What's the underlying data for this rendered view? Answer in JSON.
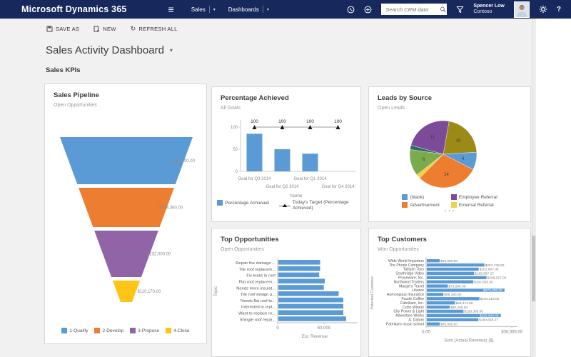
{
  "icons": {
    "hamburger": "≡",
    "caret-down": "▾",
    "refresh": "↻",
    "help": "?"
  },
  "topbar": {
    "brand": "Microsoft Dynamics 365",
    "nav": [
      {
        "label": "Sales"
      },
      {
        "label": "Dashboards"
      }
    ],
    "search_placeholder": "Search CRM data",
    "user_name": "Spencer Low",
    "user_org": "Contoso",
    "bg_color": "#17295c"
  },
  "command_bar": {
    "items": [
      {
        "label": "SAVE AS"
      },
      {
        "label": "NEW"
      },
      {
        "label": "REFRESH ALL"
      }
    ]
  },
  "page": {
    "title": "Sales Activity Dashboard",
    "section": "Sales KPIs"
  },
  "chart_data": [
    {
      "id": "sales_pipeline",
      "type": "funnel",
      "title": "Sales Pipeline",
      "subtitle": "Open Opportunities",
      "stages": [
        {
          "name": "1-Qualify",
          "label": "$215,000.00",
          "value": 215000,
          "color": "#5b9bd5"
        },
        {
          "name": "2-Develop",
          "label": "$218,360.00",
          "value": 218360,
          "color": "#ed7d31"
        },
        {
          "name": "3-Propose",
          "label": "$232,000.00",
          "value": 232000,
          "color": "#9064a7"
        },
        {
          "name": "4-Close",
          "label": "$110,170.00",
          "value": 110170,
          "color": "#ffc516"
        }
      ]
    },
    {
      "id": "percentage_achieved",
      "type": "bar",
      "title": "Percentage Achieved",
      "subtitle": "All Goals",
      "categories": [
        "Goal for Q3 2014",
        "Goal for Q2 2014",
        "Goal for Q1 2014",
        "Goal for Q4 2014"
      ],
      "values": [
        85,
        50,
        40,
        0
      ],
      "target_values": [
        100,
        100,
        100,
        100
      ],
      "target_labels": [
        "100",
        "100",
        "100",
        "100"
      ],
      "ylim": [
        0,
        100
      ],
      "yticks": [
        0,
        50,
        100
      ],
      "xlabel": "Name",
      "legend": [
        "Percentage Achieved",
        "Today's Target (Percentage Achieved)"
      ],
      "bar_color": "#5b9bd5"
    },
    {
      "id": "leads_by_source",
      "type": "pie",
      "title": "Leads by Source",
      "subtitle": "Open Leads",
      "start_angle": 10,
      "slices": [
        {
          "label": "10",
          "value": 10,
          "color": "#9c8a16"
        },
        {
          "label": "4",
          "value": 4,
          "color": "#5b9bd5"
        },
        {
          "label": "14",
          "value": 14,
          "color": "#ed7d31"
        },
        {
          "label": "",
          "value": 1,
          "color": "#f2d13e"
        },
        {
          "label": "6",
          "value": 6,
          "color": "#7cab4e"
        },
        {
          "label": "",
          "value": 1,
          "color": "#2d6b68"
        },
        {
          "label": "11",
          "value": 11,
          "color": "#7d4a9a"
        }
      ],
      "legend": [
        {
          "label": "(blank)",
          "color": "#5b9bd5"
        },
        {
          "label": "Employee Referral",
          "color": "#7d4a9a"
        },
        {
          "label": "Advertisement",
          "color": "#ed7d31"
        },
        {
          "label": "External Referral",
          "color": "#f2d13e"
        }
      ],
      "legend_more": "• • •"
    },
    {
      "id": "top_opportunities",
      "type": "hbar",
      "title": "Top Opportunities",
      "subtitle": "Open Opportunities",
      "categories": [
        "Repair the damage ...",
        "Tile roof replacem...",
        "Fix leaks in roof",
        "Flat roof replacem...",
        "Needs more insulat...",
        "Tile roof design a...",
        "Needs flat roof to...",
        "Interested in repl...",
        "Want to replace ro...",
        "Shingle roof repai..."
      ],
      "values": [
        45000,
        45000,
        44000,
        50000,
        49000,
        65000,
        70000,
        70000,
        70000,
        73000
      ],
      "xlim": [
        0,
        80000
      ],
      "xticks": [
        {
          "pos": 0,
          "label": "0"
        },
        {
          "pos": 50000,
          "label": "50,000"
        }
      ],
      "xlabel": "Est. Revenue",
      "ylabel": "Topic",
      "bar_color": "#5b9bd5"
    },
    {
      "id": "top_customers",
      "type": "hbar",
      "title": "Top Customers",
      "subtitle": "Won Opportunities",
      "categories": [
        "Wide World Importers",
        "The Phone Company",
        "Tailspin Toys",
        "Southridge Video",
        "Proseware, Inc.",
        "Northwind Traders",
        "Margie's Travel",
        "Litware",
        "Humongous Insurance",
        "Fourth Coffee",
        "Fabrikam, Inc.",
        "Coho Winery",
        "City Power & Light",
        "Adventure Works",
        "A. Datum",
        "Fabrikam music school"
      ],
      "values": [
        45000,
        201748,
        181897,
        165587,
        209027,
        162885,
        73500,
        272000,
        58150,
        184218,
        98474,
        80250,
        128385,
        259000,
        180668,
        45000
      ],
      "value_labels": [
        "$45,000.00",
        "$201,748.00",
        "$181,897.00",
        "$165,587.27",
        "$209,027.00",
        "$162,885.00",
        "$73,500.00",
        "$272,000.00",
        "$58,150.00",
        "$184,218.00",
        "$98,474.00",
        "$80,250.00",
        "$128,385.00",
        "$259,000.00",
        "$180,668.27",
        "$45,000.00"
      ],
      "inside_indices": [
        7,
        13
      ],
      "xlim": [
        0,
        300000
      ],
      "xticks": [
        {
          "pos": 0,
          "label": "0.00"
        },
        {
          "pos": 300000,
          "label": "300,000.00"
        }
      ],
      "xlabel": "Sum (Actual Revenue) ($)",
      "ylabel": "Potential Customer",
      "bar_color": "#5b9bd5"
    }
  ]
}
